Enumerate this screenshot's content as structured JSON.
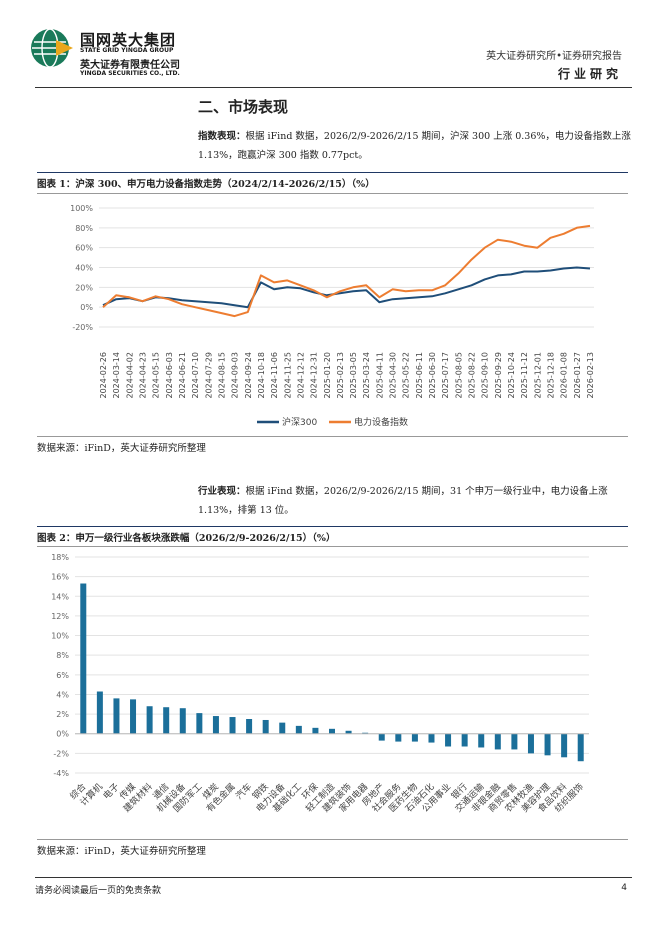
{
  "header": {
    "company_cn": "国网英大集团",
    "company_en": "STATE GRID YINGDA GROUP",
    "sub_cn": "英大证券有限责任公司",
    "sub_en": "YINGDA SECURITIES CO., LTD.",
    "right_top": "英大证券研究所•证券研究报告",
    "right_bottom": "行业研究"
  },
  "section_title": "二、市场表现",
  "para1": {
    "label": "指数表现：",
    "text": "根据 iFind 数据，2026/2/9-2026/2/15 期间，沪深 300 上涨 0.36%，电力设备指数上涨 1.13%，跑赢沪深 300 指数 0.77pct。"
  },
  "figure1": {
    "title": "图表 1：沪深 300、申万电力设备指数走势（2024/2/14-2026/2/15）（%）",
    "source": "数据来源：iFinD，英大证券研究所整理"
  },
  "para2": {
    "label": "行业表现：",
    "text": "根据 iFind 数据，2026/2/9-2026/2/15 期间，31 个申万一级行业中，电力设备上涨 1.13%，排第 13 位。"
  },
  "figure2": {
    "title": "图表 2：申万一级行业各板块涨跌幅（2026/2/9-2026/2/15）（%）",
    "source": "数据来源：iFinD，英大证券研究所整理"
  },
  "footer": {
    "left": "请务必阅读最后一页的免责条款",
    "page": "4"
  },
  "chart_data": [
    {
      "type": "line",
      "y_ticks": [
        "100%",
        "80%",
        "60%",
        "40%",
        "20%",
        "0%",
        "-20%"
      ],
      "ylim": [
        -20,
        100
      ],
      "x_ticks": [
        "2024-02-26",
        "2024-03-14",
        "2024-04-02",
        "2024-04-23",
        "2024-05-15",
        "2024-06-03",
        "2024-06-21",
        "2024-07-10",
        "2024-07-29",
        "2024-08-15",
        "2024-09-03",
        "2024-09-24",
        "2024-10-18",
        "2024-11-06",
        "2024-11-25",
        "2024-12-12",
        "2024-12-31",
        "2025-01-20",
        "2025-02-13",
        "2025-03-05",
        "2025-03-24",
        "2025-04-11",
        "2025-04-30",
        "2025-05-22",
        "2025-06-11",
        "2025-06-30",
        "2025-07-17",
        "2025-08-05",
        "2025-08-22",
        "2025-09-10",
        "2025-09-29",
        "2025-10-24",
        "2025-11-12",
        "2025-12-01",
        "2025-12-18",
        "2026-01-08",
        "2026-01-27",
        "2026-02-13"
      ],
      "grid": true,
      "legend_position": "bottom",
      "series": [
        {
          "name": "沪深300",
          "color": "#1f4e79",
          "values": [
            2,
            8,
            9,
            6,
            10,
            9,
            7,
            6,
            5,
            4,
            2,
            0,
            25,
            18,
            20,
            19,
            15,
            12,
            14,
            16,
            17,
            5,
            8,
            9,
            10,
            11,
            14,
            18,
            22,
            28,
            32,
            33,
            36,
            36,
            37,
            39,
            40,
            39
          ]
        },
        {
          "name": "电力设备指数",
          "color": "#ed7d31",
          "values": [
            0,
            12,
            10,
            6,
            11,
            8,
            3,
            0,
            -3,
            -6,
            -9,
            -5,
            32,
            25,
            27,
            22,
            17,
            10,
            16,
            20,
            22,
            10,
            18,
            16,
            17,
            17,
            22,
            34,
            48,
            60,
            68,
            66,
            62,
            60,
            70,
            74,
            80,
            82
          ]
        }
      ]
    },
    {
      "type": "bar",
      "y_ticks": [
        "18%",
        "16%",
        "14%",
        "12%",
        "10%",
        "8%",
        "6%",
        "4%",
        "2%",
        "0%",
        "-2%",
        "-4%"
      ],
      "ylim": [
        -4,
        18
      ],
      "grid": true,
      "color": "#1b6f9a",
      "categories": [
        "综合",
        "计算机",
        "电子",
        "传媒",
        "建筑材料",
        "通信",
        "机械设备",
        "国防军工",
        "煤炭",
        "有色金属",
        "汽车",
        "钢铁",
        "电力设备",
        "基础化工",
        "环保",
        "轻工制造",
        "建筑装饰",
        "家用电器",
        "房地产",
        "社会服务",
        "医药生物",
        "石油石化",
        "公用事业",
        "银行",
        "交通运输",
        "非银金融",
        "商贸零售",
        "农林牧渔",
        "美容护理",
        "食品饮料",
        "纺织服饰"
      ],
      "values": [
        15.3,
        4.3,
        3.6,
        3.5,
        2.8,
        2.7,
        2.6,
        2.1,
        1.8,
        1.7,
        1.5,
        1.4,
        1.13,
        0.8,
        0.6,
        0.5,
        0.3,
        0.1,
        -0.7,
        -0.8,
        -0.8,
        -0.9,
        -1.3,
        -1.3,
        -1.4,
        -1.6,
        -1.6,
        -2.0,
        -2.2,
        -2.4,
        -2.8
      ]
    }
  ]
}
